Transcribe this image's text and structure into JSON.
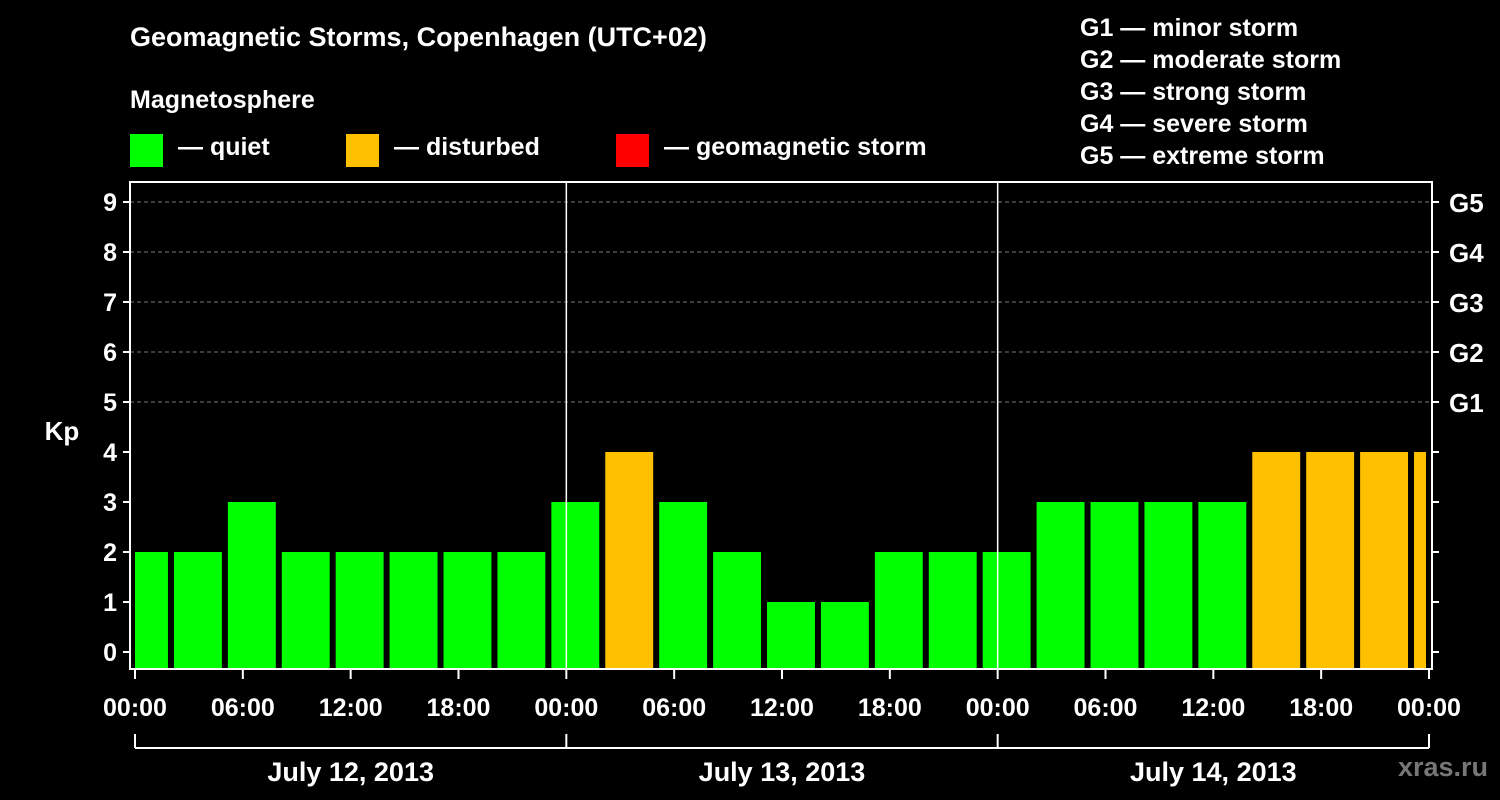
{
  "title": "Geomagnetic Storms, Copenhagen (UTC+02)",
  "subtitle": "Magnetosphere",
  "legend": [
    {
      "label": "— quiet",
      "color": "#00ff00"
    },
    {
      "label": "— disturbed",
      "color": "#ffc000"
    },
    {
      "label": "— geomagnetic storm",
      "color": "#ff0000"
    }
  ],
  "g_scale": [
    "G1 — minor storm",
    "G2 — moderate storm",
    "G3 — strong storm",
    "G4 — severe storm",
    "G5 — extreme storm"
  ],
  "watermark": "xras.ru",
  "colors": {
    "quiet": "#00ff00",
    "disturbed": "#ffc000",
    "storm": "#ff0000",
    "background": "#000000",
    "axis": "#ffffff"
  },
  "chart_data": {
    "type": "bar",
    "ylabel": "Kp",
    "ylim": [
      0,
      9
    ],
    "yticks": [
      "0",
      "1",
      "2",
      "3",
      "4",
      "5",
      "6",
      "7",
      "8",
      "9"
    ],
    "right_ticks": [
      {
        "kp": 5,
        "label": "G1"
      },
      {
        "kp": 6,
        "label": "G2"
      },
      {
        "kp": 7,
        "label": "G3"
      },
      {
        "kp": 8,
        "label": "G4"
      },
      {
        "kp": 9,
        "label": "G5"
      }
    ],
    "gridlines": [
      5,
      6,
      7,
      8,
      9
    ],
    "xtick_labels": [
      "00:00",
      "06:00",
      "12:00",
      "18:00",
      "00:00",
      "06:00",
      "12:00",
      "18:00",
      "00:00",
      "06:00",
      "12:00",
      "18:00",
      "00:00"
    ],
    "xtick_hours": [
      0,
      6,
      12,
      18,
      24,
      30,
      36,
      42,
      48,
      54,
      60,
      66,
      72
    ],
    "days": [
      "July 12, 2013",
      "July 13, 2013",
      "July 14, 2013"
    ],
    "bins": [
      {
        "start_hour": 0,
        "end_hour": 2,
        "kp": 2,
        "level": "quiet"
      },
      {
        "start_hour": 2,
        "end_hour": 5,
        "kp": 2,
        "level": "quiet"
      },
      {
        "start_hour": 5,
        "end_hour": 8,
        "kp": 3,
        "level": "quiet"
      },
      {
        "start_hour": 8,
        "end_hour": 11,
        "kp": 2,
        "level": "quiet"
      },
      {
        "start_hour": 11,
        "end_hour": 14,
        "kp": 2,
        "level": "quiet"
      },
      {
        "start_hour": 14,
        "end_hour": 17,
        "kp": 2,
        "level": "quiet"
      },
      {
        "start_hour": 17,
        "end_hour": 20,
        "kp": 2,
        "level": "quiet"
      },
      {
        "start_hour": 20,
        "end_hour": 23,
        "kp": 2,
        "level": "quiet"
      },
      {
        "start_hour": 23,
        "end_hour": 26,
        "kp": 3,
        "level": "quiet"
      },
      {
        "start_hour": 26,
        "end_hour": 29,
        "kp": 4,
        "level": "disturbed"
      },
      {
        "start_hour": 29,
        "end_hour": 32,
        "kp": 3,
        "level": "quiet"
      },
      {
        "start_hour": 32,
        "end_hour": 35,
        "kp": 2,
        "level": "quiet"
      },
      {
        "start_hour": 35,
        "end_hour": 38,
        "kp": 1,
        "level": "quiet"
      },
      {
        "start_hour": 38,
        "end_hour": 41,
        "kp": 1,
        "level": "quiet"
      },
      {
        "start_hour": 41,
        "end_hour": 44,
        "kp": 2,
        "level": "quiet"
      },
      {
        "start_hour": 44,
        "end_hour": 47,
        "kp": 2,
        "level": "quiet"
      },
      {
        "start_hour": 47,
        "end_hour": 50,
        "kp": 2,
        "level": "quiet"
      },
      {
        "start_hour": 50,
        "end_hour": 53,
        "kp": 3,
        "level": "quiet"
      },
      {
        "start_hour": 53,
        "end_hour": 56,
        "kp": 3,
        "level": "quiet"
      },
      {
        "start_hour": 56,
        "end_hour": 59,
        "kp": 3,
        "level": "quiet"
      },
      {
        "start_hour": 59,
        "end_hour": 62,
        "kp": 3,
        "level": "quiet"
      },
      {
        "start_hour": 62,
        "end_hour": 65,
        "kp": 4,
        "level": "disturbed"
      },
      {
        "start_hour": 65,
        "end_hour": 68,
        "kp": 4,
        "level": "disturbed"
      },
      {
        "start_hour": 68,
        "end_hour": 71,
        "kp": 4,
        "level": "disturbed"
      },
      {
        "start_hour": 71,
        "end_hour": 72,
        "kp": 4,
        "level": "disturbed"
      }
    ]
  }
}
